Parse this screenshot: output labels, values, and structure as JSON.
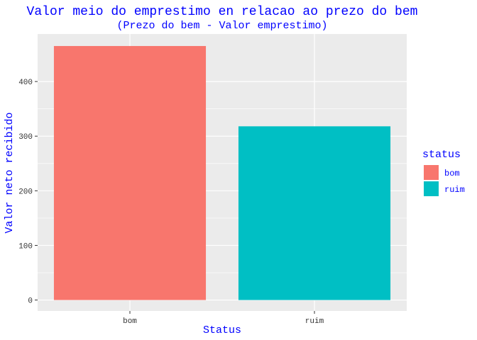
{
  "chart_data": {
    "type": "bar",
    "title": "Valor meio do emprestimo en relacao ao prezo do bem",
    "subtitle": "(Prezo do bem - Valor emprestimo)",
    "xlabel": "Status",
    "ylabel": "Valor neto recibido",
    "categories": [
      "bom",
      "ruim"
    ],
    "values": [
      465,
      318
    ],
    "colors": [
      "#f8766d",
      "#00bfc4"
    ],
    "ylim": [
      -20,
      487
    ],
    "yticks": [
      0,
      100,
      200,
      300,
      400
    ],
    "grid": true,
    "panel_background": "#ebebeb",
    "legend": {
      "title": "status",
      "position": "right",
      "items": [
        {
          "label": "bom",
          "color": "#f8766d"
        },
        {
          "label": "ruim",
          "color": "#00bfc4"
        }
      ]
    }
  }
}
